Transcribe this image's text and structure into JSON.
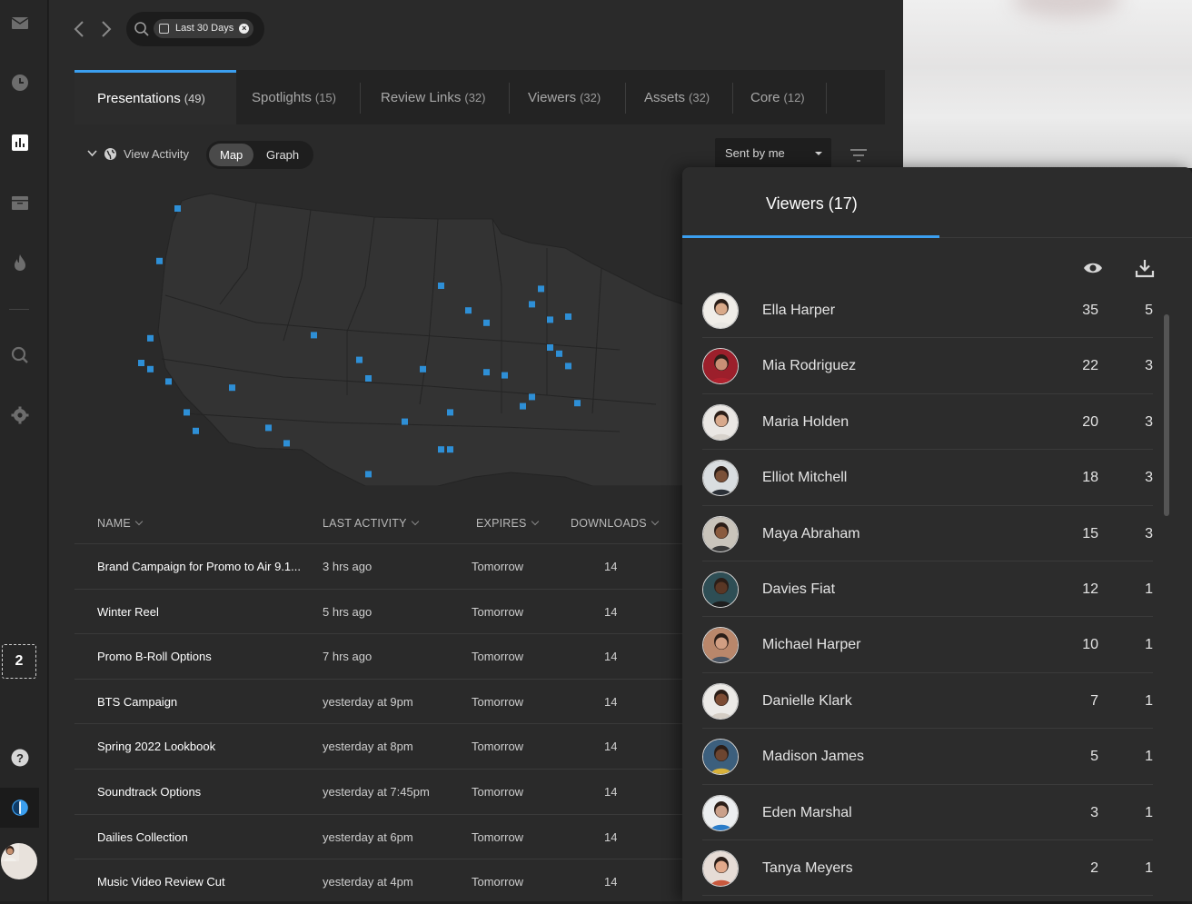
{
  "rail": {
    "icons": [
      "mail-icon",
      "clock-icon",
      "analytics-icon",
      "archive-icon",
      "flame-icon",
      "search-icon",
      "gear-icon",
      "help-icon"
    ],
    "badge": "2"
  },
  "topbar": {
    "filter_chip": "Last 30 Days"
  },
  "tabs": [
    {
      "label": "Presentations",
      "count": "(49)"
    },
    {
      "label": "Spotlights",
      "count": "(15)"
    },
    {
      "label": "Review Links",
      "count": "(32)"
    },
    {
      "label": "Viewers",
      "count": "(32)"
    },
    {
      "label": "Assets",
      "count": "(32)"
    },
    {
      "label": "Core",
      "count": "(12)"
    }
  ],
  "controls": {
    "view_activity": "View Activity",
    "map": "Map",
    "graph": "Graph",
    "sent_by": "Sent by me"
  },
  "table": {
    "headers": {
      "name": "NAME",
      "last": "LAST ACTIVITY",
      "expires": "EXPIRES",
      "downloads": "DOWNLOADS"
    },
    "rows": [
      {
        "name": "Brand Campaign for Promo to Air 9.1...",
        "last": "3 hrs ago",
        "expires": "Tomorrow",
        "downloads": "14"
      },
      {
        "name": "Winter Reel",
        "last": "5 hrs ago",
        "expires": "Tomorrow",
        "downloads": "14"
      },
      {
        "name": "Promo B-Roll Options",
        "last": "7 hrs ago",
        "expires": "Tomorrow",
        "downloads": "14"
      },
      {
        "name": "BTS Campaign",
        "last": "yesterday at 9pm",
        "expires": "Tomorrow",
        "downloads": "14"
      },
      {
        "name": "Spring 2022 Lookbook",
        "last": "yesterday at 8pm",
        "expires": "Tomorrow",
        "downloads": "14"
      },
      {
        "name": "Soundtrack Options",
        "last": "yesterday at 7:45pm",
        "expires": "Tomorrow",
        "downloads": "14"
      },
      {
        "name": "Dailies Collection",
        "last": "yesterday at 6pm",
        "expires": "Tomorrow",
        "downloads": "14"
      },
      {
        "name": "Music Video Review Cut",
        "last": "yesterday at 4pm",
        "expires": "Tomorrow",
        "downloads": "14"
      }
    ]
  },
  "panel": {
    "title": "Viewers (17)",
    "header_icons": [
      "eye-icon",
      "download-icon"
    ],
    "viewers": [
      {
        "name": "Ella Harper",
        "views": "35",
        "downloads": "5",
        "skin": "#d9a989",
        "bg": "#f0ede8",
        "shirt": "#e8e6e2"
      },
      {
        "name": "Mia Rodriguez",
        "views": "22",
        "downloads": "3",
        "skin": "#c98f75",
        "bg": "#9c1f2b",
        "shirt": "#b0212e"
      },
      {
        "name": "Maria Holden",
        "views": "20",
        "downloads": "3",
        "skin": "#d8a98c",
        "bg": "#eae7e4",
        "shirt": "#d7d2cc"
      },
      {
        "name": "Elliot Mitchell",
        "views": "18",
        "downloads": "3",
        "skin": "#7a5038",
        "bg": "#d9dde0",
        "shirt": "#2a2f36"
      },
      {
        "name": "Maya Abraham",
        "views": "15",
        "downloads": "3",
        "skin": "#8a5b3e",
        "bg": "#c9c4bb",
        "shirt": "#3a3a3a"
      },
      {
        "name": "Davies Fiat",
        "views": "12",
        "downloads": "1",
        "skin": "#5a3725",
        "bg": "#2e4e55",
        "shirt": "#1e1e1e"
      },
      {
        "name": "Michael Harper",
        "views": "10",
        "downloads": "1",
        "skin": "#d19e82",
        "bg": "#b9876b",
        "shirt": "#4a5563"
      },
      {
        "name": "Danielle Klark",
        "views": "7",
        "downloads": "1",
        "skin": "#7c4b33",
        "bg": "#eceae7",
        "shirt": "#d4cdc4"
      },
      {
        "name": "Madison James",
        "views": "5",
        "downloads": "1",
        "skin": "#6d4530",
        "bg": "#3c5f7d",
        "shirt": "#d9b23a"
      },
      {
        "name": "Eden Marshal",
        "views": "3",
        "downloads": "1",
        "skin": "#caa08a",
        "bg": "#eceef0",
        "shirt": "#2a7cc9"
      },
      {
        "name": "Tanya Meyers",
        "views": "2",
        "downloads": "1",
        "skin": "#e2a98b",
        "bg": "#e6dcd6",
        "shirt": "#c9593e"
      }
    ]
  },
  "colors": {
    "accent": "#3b9ff0",
    "map_dot": "#2e8fd6",
    "map_land": "#333333"
  },
  "map": {
    "points": [
      [
        0.23,
        0.1
      ],
      [
        0.21,
        0.27
      ],
      [
        0.52,
        0.35
      ],
      [
        0.55,
        0.43
      ],
      [
        0.57,
        0.47
      ],
      [
        0.63,
        0.36
      ],
      [
        0.62,
        0.41
      ],
      [
        0.2,
        0.52
      ],
      [
        0.19,
        0.6
      ],
      [
        0.2,
        0.62
      ],
      [
        0.22,
        0.66
      ],
      [
        0.29,
        0.68
      ],
      [
        0.24,
        0.76
      ],
      [
        0.25,
        0.82
      ],
      [
        0.33,
        0.81
      ],
      [
        0.35,
        0.86
      ],
      [
        0.38,
        0.51
      ],
      [
        0.43,
        0.59
      ],
      [
        0.44,
        0.65
      ],
      [
        0.5,
        0.62
      ],
      [
        0.48,
        0.79
      ],
      [
        0.53,
        0.76
      ],
      [
        0.52,
        0.88
      ],
      [
        0.53,
        0.88
      ],
      [
        0.44,
        0.96
      ],
      [
        0.57,
        0.63
      ],
      [
        0.59,
        0.64
      ],
      [
        0.61,
        0.74
      ],
      [
        0.62,
        0.71
      ],
      [
        0.64,
        0.55
      ],
      [
        0.65,
        0.57
      ],
      [
        0.66,
        0.45
      ],
      [
        0.66,
        0.61
      ],
      [
        0.67,
        0.73
      ],
      [
        0.64,
        0.46
      ]
    ]
  }
}
